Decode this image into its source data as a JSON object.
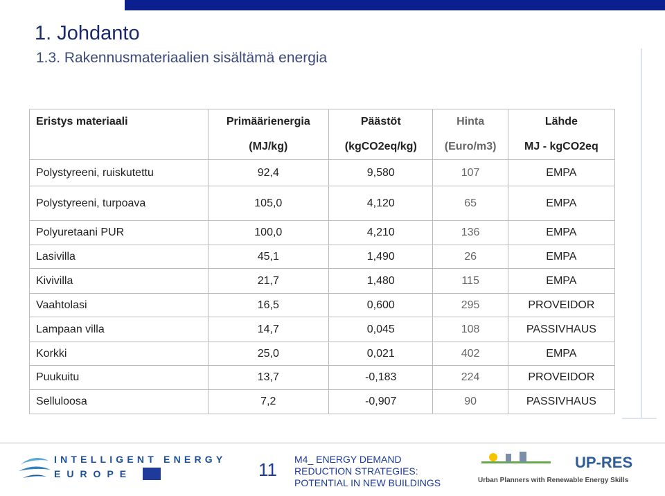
{
  "header": {
    "title": "1. Johdanto",
    "subtitle": "1.3. Rakennusmateriaalien sisältämä energia"
  },
  "table": {
    "columns": [
      [
        "Eristys materiaali",
        ""
      ],
      [
        "Primäärienergia",
        "(MJ/kg)"
      ],
      [
        "Päästöt",
        "(kgCO2eq/kg)"
      ],
      [
        "Hinta",
        "(Euro/m3)"
      ],
      [
        "Lähde",
        "MJ - kgCO2eq"
      ]
    ],
    "rows": [
      [
        "Polystyreeni, ruiskutettu",
        "92,4",
        "9,580",
        "107",
        "EMPA"
      ],
      [
        "Polystyreeni, turpoava",
        "105,0",
        "4,120",
        "65",
        "EMPA"
      ],
      [
        "Polyuretaani PUR",
        "100,0",
        "4,210",
        "136",
        "EMPA"
      ],
      [
        "Lasivilla",
        "45,1",
        "1,490",
        "26",
        "EMPA"
      ],
      [
        "Kivivilla",
        "21,7",
        "1,480",
        "115",
        "EMPA"
      ],
      [
        "Vaahtolasi",
        "16,5",
        "0,600",
        "295",
        "PROVEIDOR"
      ],
      [
        "Lampaan villa",
        "14,7",
        "0,045",
        "108",
        "PASSIVHAUS"
      ],
      [
        "Korkki",
        "25,0",
        "0,021",
        "402",
        "EMPA"
      ],
      [
        "Puukuitu",
        "13,7",
        "-0,183",
        "224",
        "PROVEIDOR"
      ],
      [
        "Selluloosa",
        "7,2",
        "-0,907",
        "90",
        "PASSIVHAUS"
      ]
    ]
  },
  "footer": {
    "logo_left": [
      "INTELLIGENT ENERGY",
      "EUROPE"
    ],
    "page": "11",
    "text": [
      "M4_ ENERGY DEMAND",
      "REDUCTION STRATEGIES:",
      "POTENTIAL IN NEW BUILDINGS"
    ],
    "logo_right": "UP-RES",
    "tagline": "Urban Planners with Renewable Energy Skills"
  }
}
